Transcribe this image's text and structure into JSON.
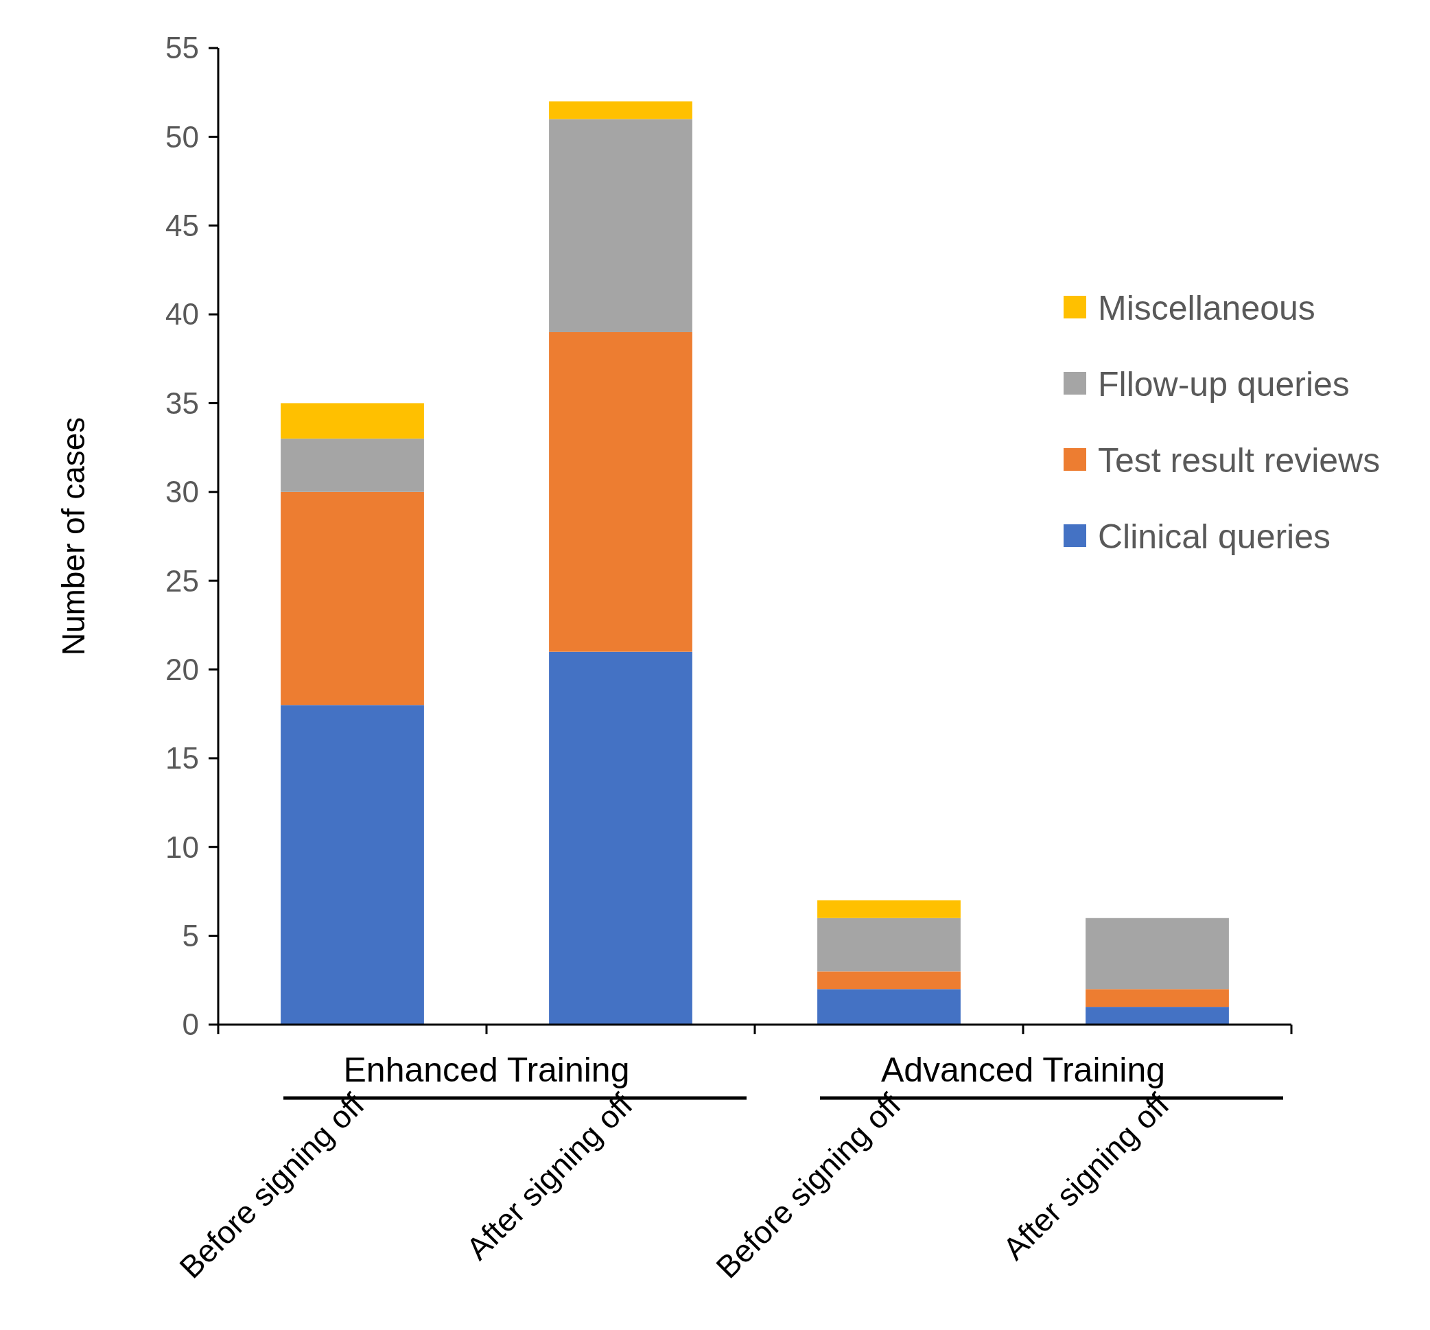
{
  "chart_data": {
    "type": "bar",
    "stacked": true,
    "ylabel": "Number of cases",
    "categories": [
      "Before signing off",
      "After signing off",
      "Before signing off",
      "After signing off"
    ],
    "series": [
      {
        "name": "Clinical queries",
        "color": "#4472c4",
        "values": [
          18,
          21,
          2,
          1
        ]
      },
      {
        "name": "Test result reviews",
        "color": "#ed7d31",
        "values": [
          12,
          18,
          1,
          1
        ]
      },
      {
        "name": "Fllow-up queries",
        "color": "#a5a5a5",
        "values": [
          3,
          12,
          3,
          4
        ]
      },
      {
        "name": "Miscellaneous",
        "color": "#ffc000",
        "values": [
          2,
          1,
          1,
          0
        ]
      }
    ],
    "ylim": [
      0,
      55
    ],
    "yticks": [
      0,
      5,
      10,
      15,
      20,
      25,
      30,
      35,
      40,
      45,
      50,
      55
    ],
    "annotations": [
      "Enhanced Training",
      "Advanced Training"
    ],
    "legend": "right",
    "grid": false
  }
}
